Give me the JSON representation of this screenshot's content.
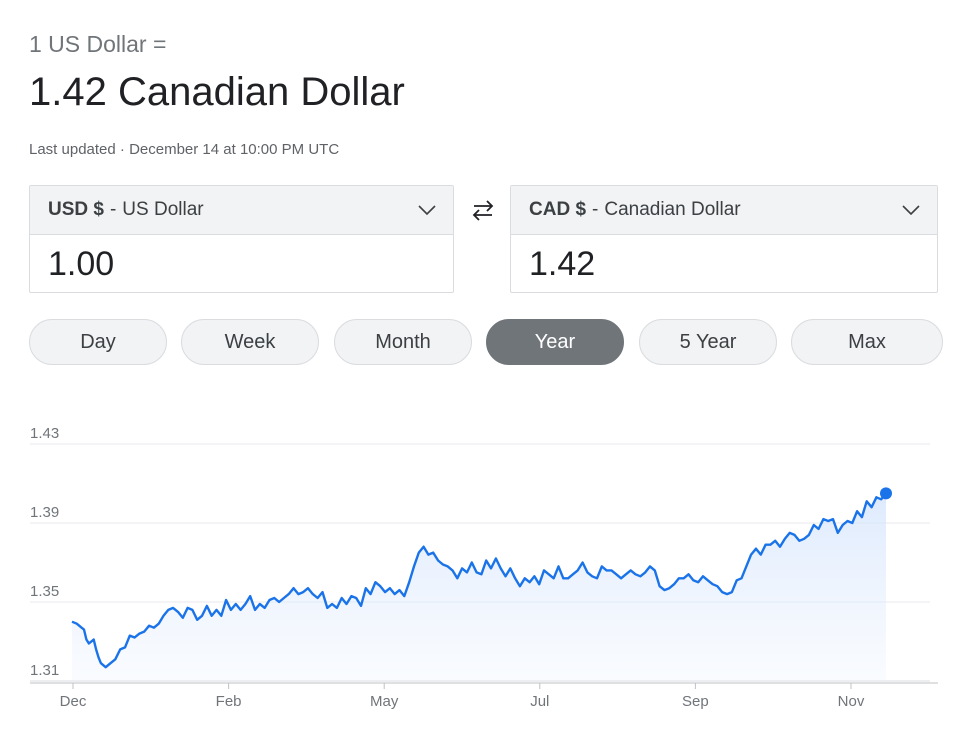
{
  "header": {
    "subtitle": "1 US Dollar =",
    "rate": "1.42 Canadian Dollar",
    "updated": "Last updated · December 14 at 10:00 PM UTC"
  },
  "from": {
    "code": "USD $",
    "name": "US Dollar",
    "amount": "1.00",
    "icon": "chevron-down-icon"
  },
  "to": {
    "code": "CAD $",
    "name": "Canadian Dollar",
    "amount": "1.42",
    "icon": "chevron-down-icon"
  },
  "swap_icon": "swap-arrows-icon",
  "ranges": [
    "Day",
    "Week",
    "Month",
    "Year",
    "5 Year",
    "Max"
  ],
  "active_range": "Year",
  "colors": {
    "line": "#1a73e8",
    "active_button": "#70757a"
  },
  "chart_data": {
    "type": "area",
    "x_tick_labels": [
      "Dec",
      "Feb",
      "May",
      "Jul",
      "Sep",
      "Nov"
    ],
    "y_tick_labels": [
      "1.43",
      "1.39",
      "1.35",
      "1.31"
    ],
    "ylim": [
      1.31,
      1.43
    ],
    "grid": true,
    "x_range_days": [
      0,
      338
    ],
    "series": [
      {
        "points": [
          [
            0,
            1.34
          ],
          [
            2,
            1.339
          ],
          [
            4,
            1.337
          ],
          [
            5,
            1.336
          ],
          [
            6,
            1.331
          ],
          [
            7,
            1.329
          ],
          [
            9,
            1.331
          ],
          [
            10,
            1.326
          ],
          [
            11,
            1.322
          ],
          [
            12,
            1.319
          ],
          [
            14,
            1.317
          ],
          [
            16,
            1.319
          ],
          [
            18,
            1.321
          ],
          [
            20,
            1.326
          ],
          [
            22,
            1.327
          ],
          [
            24,
            1.333
          ],
          [
            26,
            1.332
          ],
          [
            28,
            1.334
          ],
          [
            30,
            1.335
          ],
          [
            32,
            1.338
          ],
          [
            34,
            1.337
          ],
          [
            36,
            1.339
          ],
          [
            38,
            1.343
          ],
          [
            40,
            1.346
          ],
          [
            42,
            1.347
          ],
          [
            44,
            1.345
          ],
          [
            46,
            1.342
          ],
          [
            48,
            1.347
          ],
          [
            50,
            1.346
          ],
          [
            52,
            1.341
          ],
          [
            54,
            1.343
          ],
          [
            56,
            1.348
          ],
          [
            58,
            1.343
          ],
          [
            60,
            1.346
          ],
          [
            62,
            1.343
          ],
          [
            64,
            1.351
          ],
          [
            66,
            1.346
          ],
          [
            68,
            1.349
          ],
          [
            70,
            1.346
          ],
          [
            72,
            1.349
          ],
          [
            74,
            1.353
          ],
          [
            76,
            1.346
          ],
          [
            78,
            1.349
          ],
          [
            80,
            1.347
          ],
          [
            82,
            1.351
          ],
          [
            84,
            1.352
          ],
          [
            86,
            1.35
          ],
          [
            88,
            1.352
          ],
          [
            90,
            1.354
          ],
          [
            92,
            1.357
          ],
          [
            94,
            1.354
          ],
          [
            96,
            1.355
          ],
          [
            98,
            1.357
          ],
          [
            100,
            1.354
          ],
          [
            102,
            1.352
          ],
          [
            104,
            1.355
          ],
          [
            106,
            1.347
          ],
          [
            108,
            1.349
          ],
          [
            110,
            1.347
          ],
          [
            112,
            1.352
          ],
          [
            114,
            1.349
          ],
          [
            116,
            1.353
          ],
          [
            118,
            1.352
          ],
          [
            120,
            1.348
          ],
          [
            122,
            1.357
          ],
          [
            124,
            1.354
          ],
          [
            126,
            1.36
          ],
          [
            128,
            1.358
          ],
          [
            130,
            1.355
          ],
          [
            132,
            1.357
          ],
          [
            134,
            1.354
          ],
          [
            136,
            1.356
          ],
          [
            138,
            1.353
          ],
          [
            140,
            1.36
          ],
          [
            142,
            1.368
          ],
          [
            144,
            1.375
          ],
          [
            146,
            1.378
          ],
          [
            148,
            1.374
          ],
          [
            150,
            1.375
          ],
          [
            152,
            1.371
          ],
          [
            154,
            1.369
          ],
          [
            156,
            1.368
          ],
          [
            158,
            1.366
          ],
          [
            160,
            1.362
          ],
          [
            162,
            1.367
          ],
          [
            164,
            1.365
          ],
          [
            166,
            1.37
          ],
          [
            168,
            1.365
          ],
          [
            170,
            1.364
          ],
          [
            172,
            1.371
          ],
          [
            174,
            1.367
          ],
          [
            176,
            1.372
          ],
          [
            178,
            1.367
          ],
          [
            180,
            1.363
          ],
          [
            182,
            1.367
          ],
          [
            184,
            1.362
          ],
          [
            186,
            1.358
          ],
          [
            188,
            1.362
          ],
          [
            190,
            1.36
          ],
          [
            192,
            1.363
          ],
          [
            194,
            1.359
          ],
          [
            196,
            1.366
          ],
          [
            198,
            1.364
          ],
          [
            200,
            1.362
          ],
          [
            202,
            1.368
          ],
          [
            204,
            1.362
          ],
          [
            206,
            1.362
          ],
          [
            208,
            1.364
          ],
          [
            210,
            1.366
          ],
          [
            212,
            1.37
          ],
          [
            214,
            1.365
          ],
          [
            216,
            1.363
          ],
          [
            218,
            1.362
          ],
          [
            220,
            1.368
          ],
          [
            222,
            1.366
          ],
          [
            224,
            1.366
          ],
          [
            226,
            1.364
          ],
          [
            228,
            1.362
          ],
          [
            230,
            1.364
          ],
          [
            232,
            1.366
          ],
          [
            234,
            1.364
          ],
          [
            236,
            1.363
          ],
          [
            238,
            1.365
          ],
          [
            240,
            1.368
          ],
          [
            242,
            1.366
          ],
          [
            244,
            1.358
          ],
          [
            246,
            1.356
          ],
          [
            248,
            1.357
          ],
          [
            250,
            1.359
          ],
          [
            252,
            1.362
          ],
          [
            254,
            1.362
          ],
          [
            256,
            1.364
          ],
          [
            258,
            1.361
          ],
          [
            260,
            1.36
          ],
          [
            262,
            1.363
          ],
          [
            264,
            1.361
          ],
          [
            266,
            1.359
          ],
          [
            268,
            1.358
          ],
          [
            270,
            1.355
          ],
          [
            272,
            1.354
          ],
          [
            274,
            1.355
          ],
          [
            276,
            1.361
          ],
          [
            278,
            1.362
          ],
          [
            280,
            1.368
          ],
          [
            282,
            1.374
          ],
          [
            284,
            1.377
          ],
          [
            286,
            1.374
          ],
          [
            288,
            1.379
          ],
          [
            290,
            1.379
          ],
          [
            292,
            1.381
          ],
          [
            294,
            1.378
          ],
          [
            296,
            1.382
          ],
          [
            298,
            1.385
          ],
          [
            300,
            1.384
          ],
          [
            302,
            1.381
          ],
          [
            304,
            1.382
          ],
          [
            306,
            1.384
          ],
          [
            308,
            1.389
          ],
          [
            310,
            1.387
          ],
          [
            312,
            1.392
          ],
          [
            314,
            1.391
          ],
          [
            316,
            1.392
          ],
          [
            318,
            1.385
          ],
          [
            320,
            1.389
          ],
          [
            322,
            1.391
          ],
          [
            324,
            1.39
          ],
          [
            326,
            1.396
          ],
          [
            328,
            1.393
          ],
          [
            330,
            1.401
          ],
          [
            332,
            1.398
          ],
          [
            334,
            1.403
          ],
          [
            336,
            1.402
          ],
          [
            338,
            1.405
          ]
        ]
      }
    ]
  }
}
